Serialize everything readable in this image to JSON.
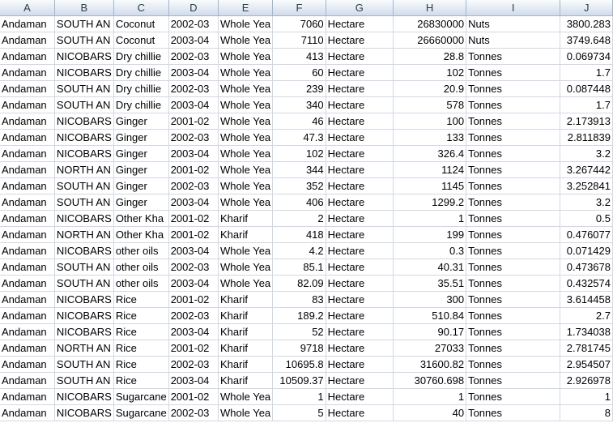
{
  "columns": [
    "A",
    "B",
    "C",
    "D",
    "E",
    "F",
    "G",
    "H",
    "I",
    "J"
  ],
  "rows": [
    [
      "Andaman",
      "SOUTH AN",
      "Coconut",
      "2002-03",
      "Whole Yea",
      "7060",
      "Hectare",
      "26830000",
      "Nuts",
      "3800.283"
    ],
    [
      "Andaman",
      "SOUTH AN",
      "Coconut",
      "2003-04",
      "Whole Yea",
      "7110",
      "Hectare",
      "26660000",
      "Nuts",
      "3749.648"
    ],
    [
      "Andaman",
      "NICOBARS",
      "Dry chillie",
      "2002-03",
      "Whole Yea",
      "413",
      "Hectare",
      "28.8",
      "Tonnes",
      "0.069734"
    ],
    [
      "Andaman",
      "NICOBARS",
      "Dry chillie",
      "2003-04",
      "Whole Yea",
      "60",
      "Hectare",
      "102",
      "Tonnes",
      "1.7"
    ],
    [
      "Andaman",
      "SOUTH AN",
      "Dry chillie",
      "2002-03",
      "Whole Yea",
      "239",
      "Hectare",
      "20.9",
      "Tonnes",
      "0.087448"
    ],
    [
      "Andaman",
      "SOUTH AN",
      "Dry chillie",
      "2003-04",
      "Whole Yea",
      "340",
      "Hectare",
      "578",
      "Tonnes",
      "1.7"
    ],
    [
      "Andaman",
      "NICOBARS",
      "Ginger",
      "2001-02",
      "Whole Yea",
      "46",
      "Hectare",
      "100",
      "Tonnes",
      "2.173913"
    ],
    [
      "Andaman",
      "NICOBARS",
      "Ginger",
      "2002-03",
      "Whole Yea",
      "47.3",
      "Hectare",
      "133",
      "Tonnes",
      "2.811839"
    ],
    [
      "Andaman",
      "NICOBARS",
      "Ginger",
      "2003-04",
      "Whole Yea",
      "102",
      "Hectare",
      "326.4",
      "Tonnes",
      "3.2"
    ],
    [
      "Andaman",
      "NORTH AN",
      "Ginger",
      "2001-02",
      "Whole Yea",
      "344",
      "Hectare",
      "1124",
      "Tonnes",
      "3.267442"
    ],
    [
      "Andaman",
      "SOUTH AN",
      "Ginger",
      "2002-03",
      "Whole Yea",
      "352",
      "Hectare",
      "1145",
      "Tonnes",
      "3.252841"
    ],
    [
      "Andaman",
      "SOUTH AN",
      "Ginger",
      "2003-04",
      "Whole Yea",
      "406",
      "Hectare",
      "1299.2",
      "Tonnes",
      "3.2"
    ],
    [
      "Andaman",
      "NICOBARS",
      "Other Kha",
      "2001-02",
      "Kharif",
      "2",
      "Hectare",
      "1",
      "Tonnes",
      "0.5"
    ],
    [
      "Andaman",
      "NORTH AN",
      "Other Kha",
      "2001-02",
      "Kharif",
      "418",
      "Hectare",
      "199",
      "Tonnes",
      "0.476077"
    ],
    [
      "Andaman",
      "NICOBARS",
      "other oils",
      "2003-04",
      "Whole Yea",
      "4.2",
      "Hectare",
      "0.3",
      "Tonnes",
      "0.071429"
    ],
    [
      "Andaman",
      "SOUTH AN",
      "other oils",
      "2002-03",
      "Whole Yea",
      "85.1",
      "Hectare",
      "40.31",
      "Tonnes",
      "0.473678"
    ],
    [
      "Andaman",
      "SOUTH AN",
      "other oils",
      "2003-04",
      "Whole Yea",
      "82.09",
      "Hectare",
      "35.51",
      "Tonnes",
      "0.432574"
    ],
    [
      "Andaman",
      "NICOBARS",
      "Rice",
      "2001-02",
      "Kharif",
      "83",
      "Hectare",
      "300",
      "Tonnes",
      "3.614458"
    ],
    [
      "Andaman",
      "NICOBARS",
      "Rice",
      "2002-03",
      "Kharif",
      "189.2",
      "Hectare",
      "510.84",
      "Tonnes",
      "2.7"
    ],
    [
      "Andaman",
      "NICOBARS",
      "Rice",
      "2003-04",
      "Kharif",
      "52",
      "Hectare",
      "90.17",
      "Tonnes",
      "1.734038"
    ],
    [
      "Andaman",
      "NORTH AN",
      "Rice",
      "2001-02",
      "Kharif",
      "9718",
      "Hectare",
      "27033",
      "Tonnes",
      "2.781745"
    ],
    [
      "Andaman",
      "SOUTH AN",
      "Rice",
      "2002-03",
      "Kharif",
      "10695.8",
      "Hectare",
      "31600.82",
      "Tonnes",
      "2.954507"
    ],
    [
      "Andaman",
      "SOUTH AN",
      "Rice",
      "2003-04",
      "Kharif",
      "10509.37",
      "Hectare",
      "30760.698",
      "Tonnes",
      "2.926978"
    ],
    [
      "Andaman",
      "NICOBARS",
      "Sugarcane",
      "2001-02",
      "Whole Yea",
      "1",
      "Hectare",
      "1",
      "Tonnes",
      "1"
    ],
    [
      "Andaman",
      "NICOBARS",
      "Sugarcane",
      "2002-03",
      "Whole Yea",
      "5",
      "Hectare",
      "40",
      "Tonnes",
      "8"
    ]
  ]
}
